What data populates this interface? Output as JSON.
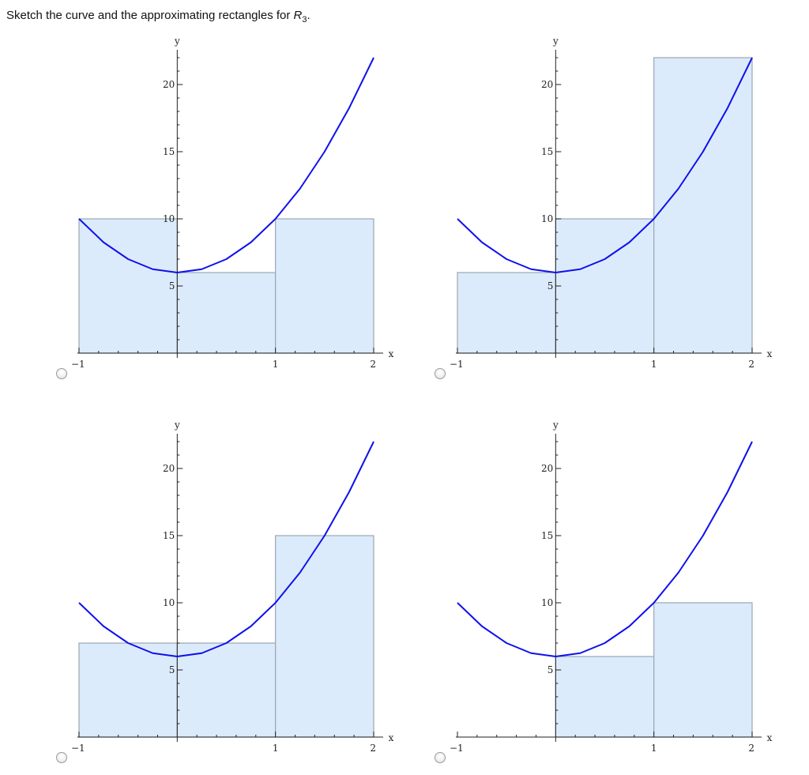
{
  "question": {
    "text_before": "Sketch the curve and the approximating rectangles for ",
    "symbol": "R",
    "subscript": "3",
    "text_after": "."
  },
  "choices": [
    {
      "radio_selected": false
    },
    {
      "radio_selected": false
    },
    {
      "radio_selected": false
    },
    {
      "radio_selected": false
    }
  ],
  "chart_data": [
    {
      "type": "area",
      "xlabel": "x",
      "ylabel": "y",
      "xlim": [
        -1,
        2
      ],
      "ylim": [
        0,
        22
      ],
      "x_ticks": [
        -1,
        1,
        2
      ],
      "x_tick_labels": [
        "-1",
        "1",
        "2"
      ],
      "y_ticks": [
        5,
        10,
        15,
        20
      ],
      "y_tick_labels": [
        "5",
        "10",
        "15",
        "20"
      ],
      "curve": {
        "color": "#1010ee",
        "points": [
          [
            -1,
            10
          ],
          [
            -0.75,
            8.25
          ],
          [
            -0.5,
            7
          ],
          [
            -0.25,
            6.25
          ],
          [
            0,
            6
          ],
          [
            0.25,
            6.25
          ],
          [
            0.5,
            7
          ],
          [
            0.75,
            8.25
          ],
          [
            1,
            10
          ],
          [
            1.25,
            12.25
          ],
          [
            1.5,
            15
          ],
          [
            1.75,
            18.25
          ],
          [
            2,
            22
          ]
        ]
      },
      "rectangles": [
        {
          "x0": -1,
          "x1": 0,
          "height": 10
        },
        {
          "x0": 0,
          "x1": 1,
          "height": 6
        },
        {
          "x0": 1,
          "x1": 2,
          "height": 10
        }
      ]
    },
    {
      "type": "area",
      "xlabel": "x",
      "ylabel": "y",
      "xlim": [
        -1,
        2
      ],
      "ylim": [
        0,
        22
      ],
      "x_ticks": [
        -1,
        1,
        2
      ],
      "x_tick_labels": [
        "-1",
        "1",
        "2"
      ],
      "y_ticks": [
        5,
        10,
        15,
        20
      ],
      "y_tick_labels": [
        "5",
        "10",
        "15",
        "20"
      ],
      "curve": {
        "color": "#1010ee",
        "points": [
          [
            -1,
            10
          ],
          [
            -0.75,
            8.25
          ],
          [
            -0.5,
            7
          ],
          [
            -0.25,
            6.25
          ],
          [
            0,
            6
          ],
          [
            0.25,
            6.25
          ],
          [
            0.5,
            7
          ],
          [
            0.75,
            8.25
          ],
          [
            1,
            10
          ],
          [
            1.25,
            12.25
          ],
          [
            1.5,
            15
          ],
          [
            1.75,
            18.25
          ],
          [
            2,
            22
          ]
        ]
      },
      "rectangles": [
        {
          "x0": -1,
          "x1": 0,
          "height": 6
        },
        {
          "x0": 0,
          "x1": 1,
          "height": 10
        },
        {
          "x0": 1,
          "x1": 2,
          "height": 22
        }
      ]
    },
    {
      "type": "area",
      "xlabel": "x",
      "ylabel": "y",
      "xlim": [
        -1,
        2
      ],
      "ylim": [
        0,
        22
      ],
      "x_ticks": [
        -1,
        1,
        2
      ],
      "x_tick_labels": [
        "-1",
        "1",
        "2"
      ],
      "y_ticks": [
        5,
        10,
        15,
        20
      ],
      "y_tick_labels": [
        "5",
        "10",
        "15",
        "20"
      ],
      "curve": {
        "color": "#1010ee",
        "points": [
          [
            -1,
            10
          ],
          [
            -0.75,
            8.25
          ],
          [
            -0.5,
            7
          ],
          [
            -0.25,
            6.25
          ],
          [
            0,
            6
          ],
          [
            0.25,
            6.25
          ],
          [
            0.5,
            7
          ],
          [
            0.75,
            8.25
          ],
          [
            1,
            10
          ],
          [
            1.25,
            12.25
          ],
          [
            1.5,
            15
          ],
          [
            1.75,
            18.25
          ],
          [
            2,
            22
          ]
        ]
      },
      "rectangles": [
        {
          "x0": -1,
          "x1": 0,
          "height": 7
        },
        {
          "x0": 0,
          "x1": 1,
          "height": 7
        },
        {
          "x0": 1,
          "x1": 2,
          "height": 15
        }
      ]
    },
    {
      "type": "area",
      "xlabel": "x",
      "ylabel": "y",
      "xlim": [
        -1,
        2
      ],
      "ylim": [
        0,
        22
      ],
      "x_ticks": [
        -1,
        1,
        2
      ],
      "x_tick_labels": [
        "-1",
        "1",
        "2"
      ],
      "y_ticks": [
        5,
        10,
        15,
        20
      ],
      "y_tick_labels": [
        "5",
        "10",
        "15",
        "20"
      ],
      "curve": {
        "color": "#1010ee",
        "points": [
          [
            -1,
            10
          ],
          [
            -0.75,
            8.25
          ],
          [
            -0.5,
            7
          ],
          [
            -0.25,
            6.25
          ],
          [
            0,
            6
          ],
          [
            0.25,
            6.25
          ],
          [
            0.5,
            7
          ],
          [
            0.75,
            8.25
          ],
          [
            1,
            10
          ],
          [
            1.25,
            12.25
          ],
          [
            1.5,
            15
          ],
          [
            1.75,
            18.25
          ],
          [
            2,
            22
          ]
        ]
      },
      "rectangles": [
        {
          "x0": 0,
          "x1": 1,
          "height": 6
        },
        {
          "x0": 1,
          "x1": 2,
          "height": 10
        }
      ]
    }
  ]
}
